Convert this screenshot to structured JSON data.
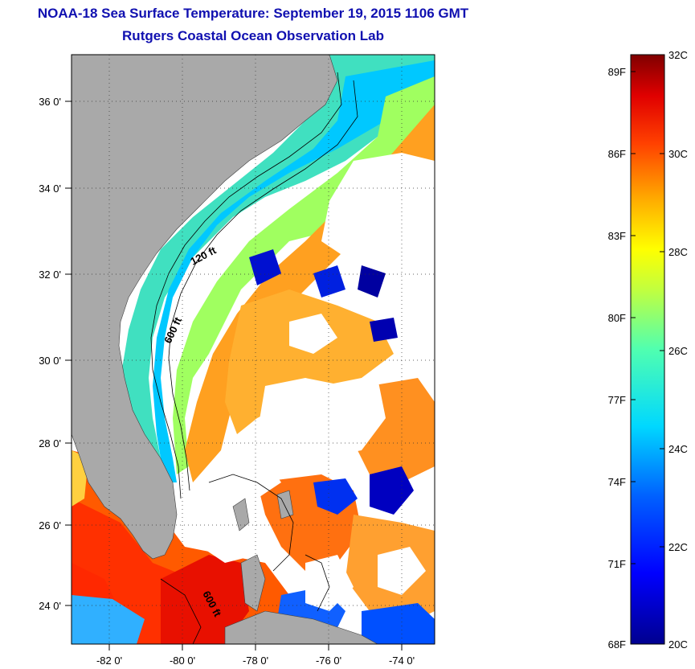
{
  "header": {
    "title": "NOAA-18 Sea Surface Temperature:  September 19, 2015 1106 GMT",
    "subtitle": "Rutgers Coastal Ocean Observation Lab"
  },
  "map": {
    "lon_ticks": [
      "-82 0'",
      "-80 0'",
      "-78 0'",
      "-76 0'",
      "-74 0'"
    ],
    "lat_ticks": [
      "36 0'",
      "34 0'",
      "32 0'",
      "30 0'",
      "28 0'",
      "26 0'",
      "24 0'"
    ],
    "contour_labels": [
      "120 ft",
      "600 ft",
      "600 ft"
    ],
    "colors": {
      "land": "#a9a9a9",
      "cloud": "#ffffff"
    }
  },
  "colorbar": {
    "fahrenheit_labels": [
      "89F",
      "86F",
      "83F",
      "80F",
      "77F",
      "74F",
      "71F",
      "68F"
    ],
    "celsius_labels": [
      "32C",
      "30C",
      "28C",
      "26C",
      "24C",
      "22C",
      "20C"
    ]
  }
}
